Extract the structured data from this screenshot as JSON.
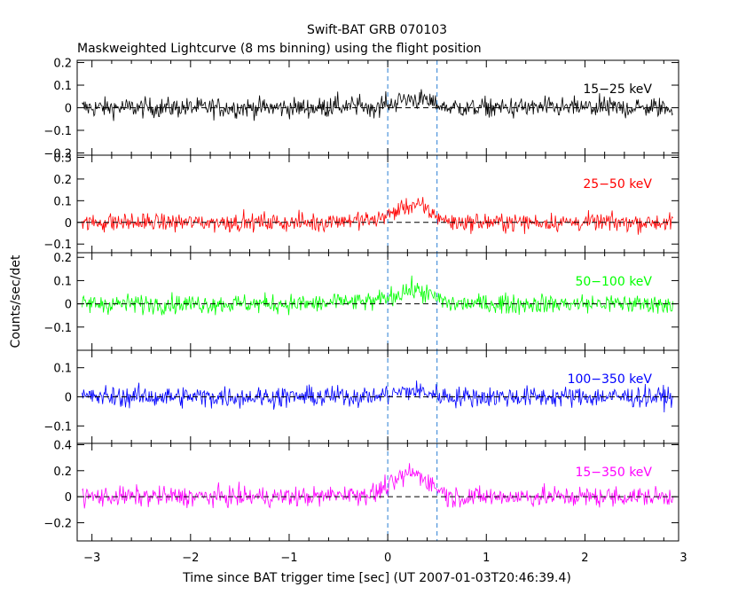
{
  "chart_data": {
    "type": "line",
    "title": "Swift-BAT GRB 070103",
    "subtitle": "Maskweighted Lightcurve (8 ms binning) using the flight position",
    "xlabel": "Time since BAT trigger time [sec] (UT 2007-01-03T20:46:39.4)",
    "ylabel": "Counts/sec/det",
    "xlim": [
      -3.15,
      2.95
    ],
    "x_ticks": [
      "−3",
      "−2",
      "−1",
      "0",
      "1",
      "2",
      "3"
    ],
    "x_tick_values": [
      -3,
      -2,
      -1,
      0,
      1,
      2,
      3
    ],
    "bin_width_sec": 0.008,
    "data_x_range": [
      -3.1,
      2.9
    ],
    "reference_lines": [
      0.0,
      0.5
    ],
    "panels": [
      {
        "name": "15-25 keV",
        "label": "15−25 keV",
        "color": "#000000",
        "ylim": [
          -0.21,
          0.21
        ],
        "y_ticks": [
          "−0.2",
          "−0.1",
          "0",
          "0.1",
          "0.2"
        ],
        "y_tick_values": [
          -0.2,
          -0.1,
          0,
          0.1,
          0.2
        ],
        "baseline": 0.0,
        "noise_amplitude": 0.075,
        "burst_peak": 0.04
      },
      {
        "name": "25-50 keV",
        "label": "25−50 keV",
        "color": "#ff0000",
        "ylim": [
          -0.14,
          0.31
        ],
        "y_ticks": [
          "−0.1",
          "0",
          "0.1",
          "0.2",
          "0.3"
        ],
        "y_tick_values": [
          -0.1,
          0,
          0.1,
          0.2,
          0.3
        ],
        "baseline": 0.0,
        "noise_amplitude": 0.07,
        "burst_peak": 0.08
      },
      {
        "name": "50-100 keV",
        "label": "50−100 keV",
        "color": "#00ff00",
        "ylim": [
          -0.2,
          0.22
        ],
        "y_ticks": [
          "−0.1",
          "0",
          "0.1",
          "0.2"
        ],
        "y_tick_values": [
          -0.1,
          0,
          0.1,
          0.2
        ],
        "baseline": 0.0,
        "noise_amplitude": 0.07,
        "burst_peak": 0.06
      },
      {
        "name": "100-350 keV",
        "label": "100−350 keV",
        "color": "#0000ff",
        "ylim": [
          -0.16,
          0.16
        ],
        "y_ticks": [
          "−0.1",
          "0",
          "0.1"
        ],
        "y_tick_values": [
          -0.1,
          0,
          0.1
        ],
        "baseline": 0.0,
        "noise_amplitude": 0.06,
        "burst_peak": 0.02
      },
      {
        "name": "15-350 keV",
        "label": "15−350 keV",
        "color": "#ff00ff",
        "ylim": [
          -0.34,
          0.41
        ],
        "y_ticks": [
          "−0.2",
          "0",
          "0.2",
          "0.4"
        ],
        "y_tick_values": [
          -0.2,
          0,
          0.2,
          0.4
        ],
        "baseline": 0.0,
        "noise_amplitude": 0.13,
        "burst_peak": 0.18
      }
    ],
    "burst_window_sec": [
      0.0,
      0.6
    ],
    "grid": false,
    "legend": "none (panel labels at top-right)"
  }
}
